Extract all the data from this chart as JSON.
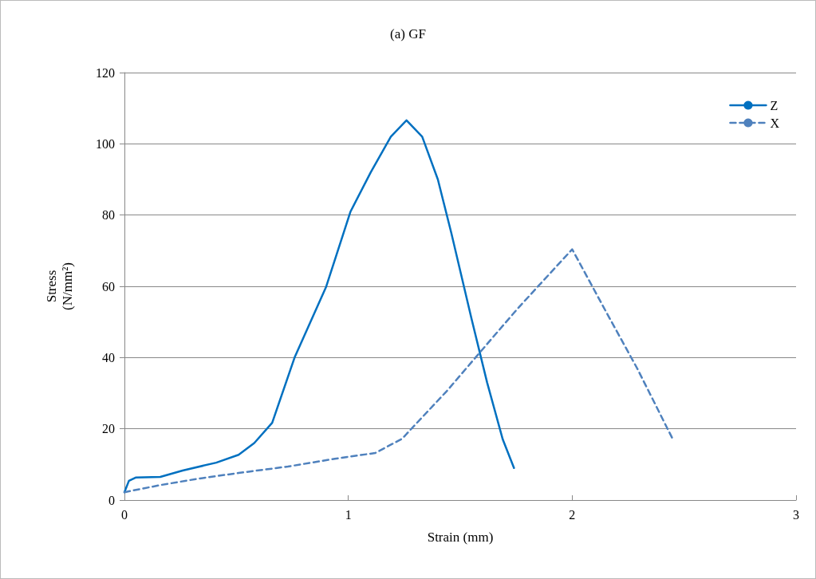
{
  "chart_data": {
    "type": "line",
    "title": "(a) GF",
    "xlabel": "Strain (mm)",
    "ylabel": "Stress\n(N/mm²)",
    "xlim": [
      0,
      3
    ],
    "xticks": [
      0,
      1,
      2,
      3
    ],
    "ylim": [
      0,
      120
    ],
    "yticks": [
      0,
      20,
      40,
      60,
      80,
      100,
      120
    ],
    "grid": "y",
    "legend": "top right",
    "marker": "none",
    "series": [
      {
        "name": "Z",
        "color": "#0070c0",
        "line_style": "solid",
        "x": [
          0,
          0.02,
          0.05,
          0.16,
          0.26,
          0.41,
          0.51,
          0.58,
          0.66,
          0.76,
          0.9,
          1.01,
          1.1,
          1.19,
          1.26,
          1.33,
          1.4,
          1.46,
          1.55,
          1.62,
          1.69,
          1.74
        ],
        "values": [
          2.2,
          5.4,
          6.3,
          6.5,
          8.3,
          10.5,
          12.7,
          16,
          21.7,
          40,
          59.7,
          81,
          92,
          102,
          106.6,
          102,
          90,
          75,
          51,
          33,
          17,
          9
        ]
      },
      {
        "name": "X",
        "color": "#4f81bd",
        "line_style": "dashed",
        "x": [
          0,
          0.16,
          0.33,
          0.51,
          0.73,
          0.94,
          1.12,
          1.24,
          1.44,
          1.65,
          1.76,
          2,
          2.15,
          2.29,
          2.45
        ],
        "values": [
          2.2,
          4.2,
          6,
          7.6,
          9.4,
          11.6,
          13.2,
          17.2,
          30.6,
          46,
          54,
          70.4,
          53,
          37,
          17
        ]
      }
    ]
  }
}
